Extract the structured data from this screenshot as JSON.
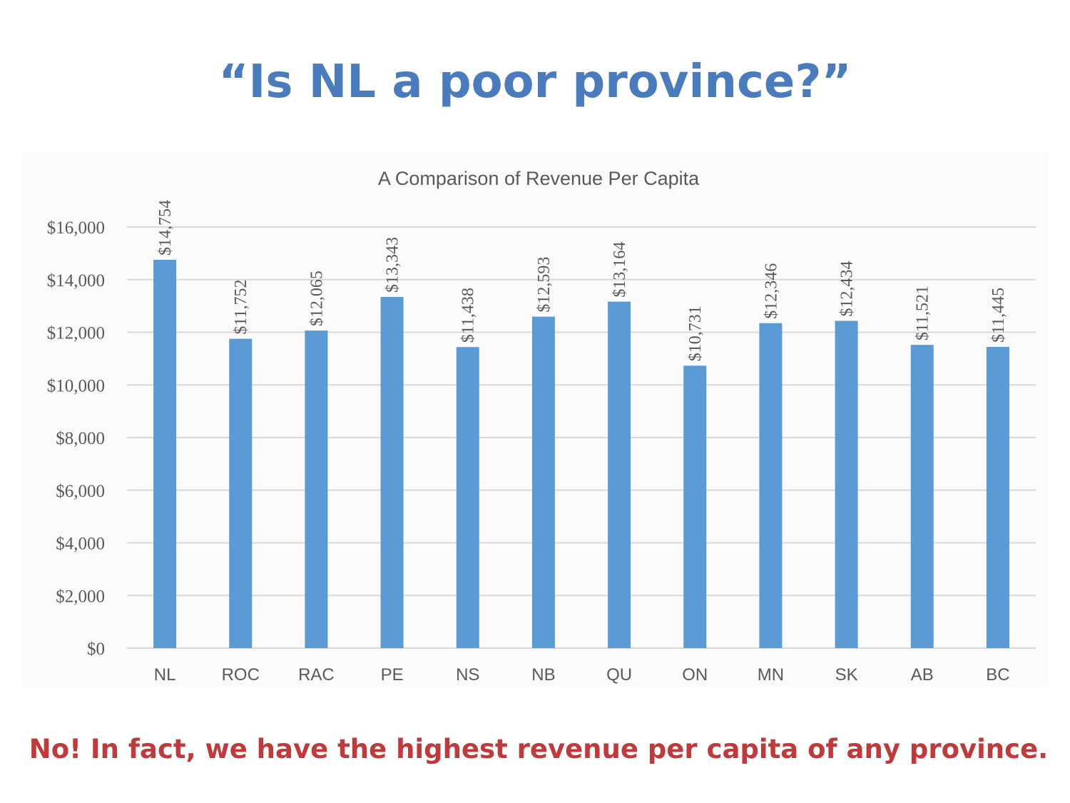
{
  "slide": {
    "title": "“Is NL a poor province?”",
    "footnote": "No! In fact, we have the highest revenue per capita of any province."
  },
  "colors": {
    "title": "#4a7bbd",
    "footnote": "#c0393b",
    "bar": "#5b9bd5",
    "grid": "#d9d9d9",
    "axis_text": "#595959"
  },
  "chart_data": {
    "type": "bar",
    "title": "A Comparison of Revenue Per Capita",
    "xlabel": "",
    "ylabel": "",
    "categories": [
      "NL",
      "ROC",
      "RAC",
      "PE",
      "NS",
      "NB",
      "QU",
      "ON",
      "MN",
      "SK",
      "AB",
      "BC"
    ],
    "values": [
      14754,
      11752,
      12065,
      13343,
      11438,
      12593,
      13164,
      10731,
      12346,
      12434,
      11521,
      11445
    ],
    "data_labels": [
      "$14,754",
      "$11,752",
      "$12,065",
      "$13,343",
      "$11,438",
      "$12,593",
      "$13,164",
      "$10,731",
      "$12,346",
      "$12,434",
      "$11,521",
      "$11,445"
    ],
    "ylim": [
      0,
      16000
    ],
    "yticks": [
      0,
      2000,
      4000,
      6000,
      8000,
      10000,
      12000,
      14000,
      16000
    ],
    "ytick_labels": [
      "$0",
      "$2,000",
      "$4,000",
      "$6,000",
      "$8,000",
      "$10,000",
      "$12,000",
      "$14,000",
      "$16,000"
    ],
    "grid": true,
    "legend": "none"
  }
}
